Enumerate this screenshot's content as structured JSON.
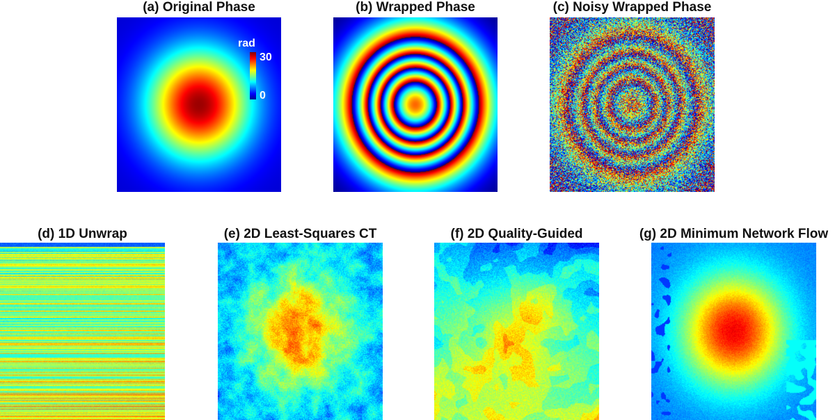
{
  "panels": {
    "a": {
      "title": "(a) Original Phase"
    },
    "b": {
      "title": "(b) Wrapped Phase"
    },
    "c": {
      "title": "(c) Noisy Wrapped Phase"
    },
    "d": {
      "title": "(d) 1D Unwrap"
    },
    "e": {
      "title": "(e) 2D Least-Squares CT"
    },
    "f": {
      "title": "(f) 2D Quality-Guided"
    },
    "g": {
      "title": "(g) 2D Minimum Network Flow"
    }
  },
  "colorbar": {
    "unit": "rad",
    "max": "30",
    "min": "0",
    "colormap": "jet"
  }
}
